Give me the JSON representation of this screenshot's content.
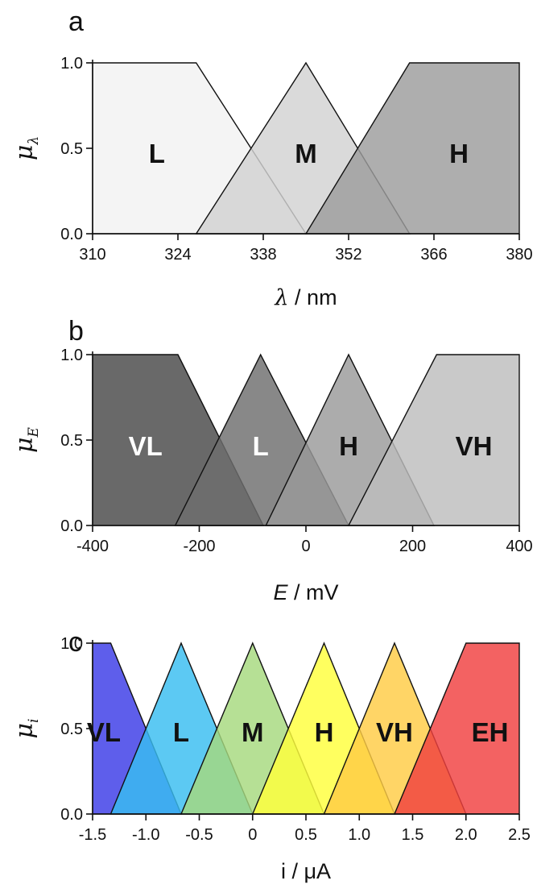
{
  "chart_data": [
    {
      "type": "area",
      "panel": "a",
      "ylabel": "μλ",
      "ylabel_symbol": "μ",
      "ylabel_sub": "λ",
      "xlabel": "λ / nm",
      "xlabel_var": "λ",
      "xlabel_unit": " / nm",
      "xlim": [
        310,
        380
      ],
      "ylim": [
        0,
        1
      ],
      "xticks": [
        "310",
        "324",
        "338",
        "352",
        "366",
        "380"
      ],
      "yticks": [
        "0.0",
        "0.5",
        "1.0"
      ],
      "sets": [
        {
          "name": "L",
          "x": [
            310,
            327,
            345
          ],
          "shape": "left-shoulder",
          "color": "#f2f2f2",
          "label_color": "#111111"
        },
        {
          "name": "M",
          "x": [
            327,
            345,
            362
          ],
          "shape": "triangle",
          "color": "#d2d2d2",
          "label_color": "#111111"
        },
        {
          "name": "H",
          "x": [
            345,
            362,
            380
          ],
          "shape": "right-shoulder",
          "color": "#9c9c9c",
          "label_color": "#111111"
        }
      ]
    },
    {
      "type": "area",
      "panel": "b",
      "ylabel": "μE",
      "ylabel_symbol": "μ",
      "ylabel_sub": "E",
      "xlabel": "E / mV",
      "xlabel_var": "E",
      "xlabel_unit": " / mV",
      "xlim": [
        -400,
        400
      ],
      "ylim": [
        0,
        1
      ],
      "xticks": [
        "-400",
        "-200",
        "0",
        "200",
        "400"
      ],
      "yticks": [
        "0.0",
        "0.5",
        "1.0"
      ],
      "sets": [
        {
          "name": "VL",
          "x": [
            -400,
            -240,
            -80
          ],
          "shape": "left-shoulder",
          "color": "#484848",
          "label_color": "#ffffff"
        },
        {
          "name": "L",
          "x": [
            -245,
            -85,
            80
          ],
          "shape": "triangle",
          "color": "#6e6e6e",
          "label_color": "#ffffff"
        },
        {
          "name": "H",
          "x": [
            -75,
            80,
            240
          ],
          "shape": "triangle",
          "color": "#9a9a9a",
          "label_color": "#111111"
        },
        {
          "name": "VH",
          "x": [
            80,
            245,
            400
          ],
          "shape": "right-shoulder",
          "color": "#bdbdbd",
          "label_color": "#111111"
        }
      ]
    },
    {
      "type": "area",
      "panel": "c",
      "ylabel": "μi",
      "ylabel_symbol": "μ",
      "ylabel_sub": "i",
      "xlabel": "i / μA",
      "xlabel_var": "i",
      "xlabel_unit": " / μA",
      "xlim": [
        -1.5,
        2.5
      ],
      "ylim": [
        0,
        1
      ],
      "xticks": [
        "-1.5",
        "-1.0",
        "-0.5",
        "0",
        "0.5",
        "1.0",
        "1.5",
        "2.0",
        "2.5"
      ],
      "yticks": [
        "0.0",
        "0.5",
        "1.0"
      ],
      "sets": [
        {
          "name": "VL",
          "x": [
            -1.5,
            -1.33,
            -0.67
          ],
          "shape": "left-shoulder",
          "color": "#3a3ae6",
          "label_color": "#111111"
        },
        {
          "name": "L",
          "x": [
            -1.33,
            -0.67,
            0.0
          ],
          "shape": "triangle",
          "color": "#38bdf0",
          "label_color": "#111111"
        },
        {
          "name": "M",
          "x": [
            -0.67,
            0.0,
            0.67
          ],
          "shape": "triangle",
          "color": "#a6d97e",
          "label_color": "#111111"
        },
        {
          "name": "H",
          "x": [
            0.0,
            0.67,
            1.33
          ],
          "shape": "triangle",
          "color": "#ffff3c",
          "label_color": "#111111"
        },
        {
          "name": "VH",
          "x": [
            0.67,
            1.33,
            2.0
          ],
          "shape": "triangle",
          "color": "#ffcc44",
          "label_color": "#111111"
        },
        {
          "name": "EH",
          "x": [
            1.33,
            2.0,
            2.5
          ],
          "shape": "right-shoulder",
          "color": "#f04040",
          "label_color": "#111111"
        }
      ]
    }
  ]
}
